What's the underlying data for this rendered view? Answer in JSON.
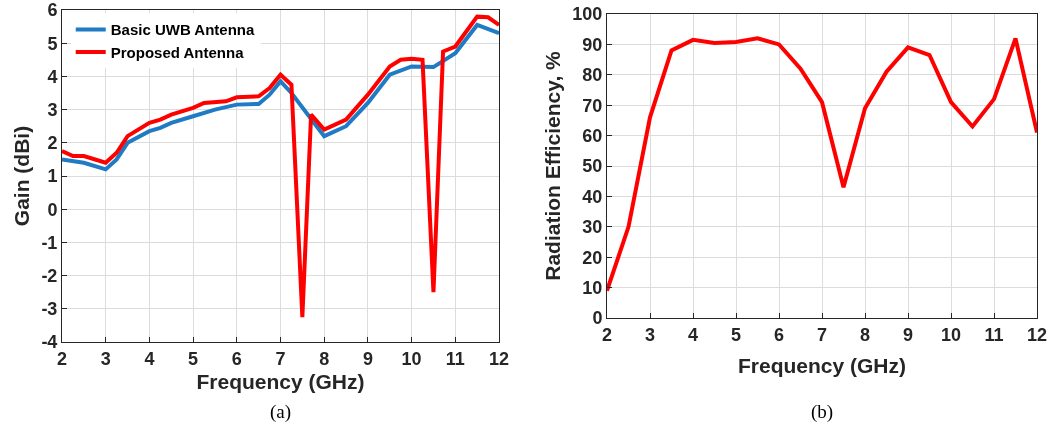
{
  "chart_data": [
    {
      "type": "line",
      "xlabel": "Frequency (GHz)",
      "ylabel": "Gain (dBi)",
      "xlim": [
        2,
        12
      ],
      "ylim": [
        -4,
        6
      ],
      "xticks": [
        2,
        3,
        4,
        5,
        6,
        7,
        8,
        9,
        10,
        11,
        12
      ],
      "yticks": [
        -4,
        -3,
        -2,
        -1,
        0,
        1,
        2,
        3,
        4,
        5,
        6
      ],
      "grid": true,
      "legend": "top left",
      "marker": "none",
      "line_style": "solid",
      "annotations": [
        "(a)"
      ],
      "series": [
        {
          "name": "Basic UWB Antenna",
          "color": "#1f7bc4",
          "x": [
            2,
            2.5,
            3,
            3.25,
            3.5,
            4,
            4.25,
            4.5,
            5,
            5.5,
            6,
            6.5,
            6.75,
            7,
            7.25,
            8,
            8.5,
            9,
            9.5,
            10,
            10.5,
            11,
            11.5,
            12
          ],
          "values": [
            1.5,
            1.4,
            1.2,
            1.5,
            2.0,
            2.35,
            2.45,
            2.6,
            2.8,
            3.0,
            3.15,
            3.17,
            3.45,
            3.85,
            3.5,
            2.2,
            2.5,
            3.2,
            4.05,
            4.3,
            4.28,
            4.7,
            5.55,
            5.3
          ]
        },
        {
          "name": "Proposed Antenna",
          "color": "#ff0000",
          "x": [
            2,
            2.25,
            2.5,
            3,
            3.25,
            3.5,
            4,
            4.25,
            4.5,
            5,
            5.25,
            5.75,
            6,
            6.5,
            6.75,
            7,
            7.25,
            7.5,
            7.7,
            8,
            8.5,
            9,
            9.5,
            9.75,
            10,
            10.25,
            10.5,
            10.72,
            11,
            11.5,
            11.75,
            12
          ],
          "values": [
            1.75,
            1.6,
            1.6,
            1.4,
            1.7,
            2.2,
            2.6,
            2.7,
            2.85,
            3.05,
            3.2,
            3.25,
            3.37,
            3.4,
            3.65,
            4.05,
            3.75,
            -3.25,
            2.85,
            2.4,
            2.7,
            3.45,
            4.3,
            4.5,
            4.53,
            4.5,
            -2.5,
            4.75,
            4.9,
            5.8,
            5.78,
            5.55
          ]
        }
      ]
    },
    {
      "type": "line",
      "xlabel": "Frequency (GHz)",
      "ylabel": "Radiation Efficiency, %",
      "xlim": [
        2,
        12
      ],
      "ylim": [
        0,
        100
      ],
      "xticks": [
        2,
        3,
        4,
        5,
        6,
        7,
        8,
        9,
        10,
        11,
        12
      ],
      "yticks": [
        0,
        10,
        20,
        30,
        40,
        50,
        60,
        70,
        80,
        90,
        100
      ],
      "grid": true,
      "marker": "none",
      "line_style": "solid",
      "annotations": [
        "(b)"
      ],
      "x": [
        2,
        2.5,
        3,
        3.5,
        4,
        4.5,
        5,
        5.5,
        6,
        6.5,
        7,
        7.5,
        8,
        8.5,
        9,
        9.5,
        10,
        10.5,
        11,
        11.5,
        12
      ],
      "series": [
        {
          "color": "#ff0000",
          "values": [
            9,
            30,
            66,
            88,
            91.5,
            90.5,
            90.8,
            92,
            90,
            82,
            71,
            43,
            69,
            81,
            89,
            86.5,
            71,
            63,
            72,
            92,
            61
          ]
        }
      ]
    }
  ]
}
